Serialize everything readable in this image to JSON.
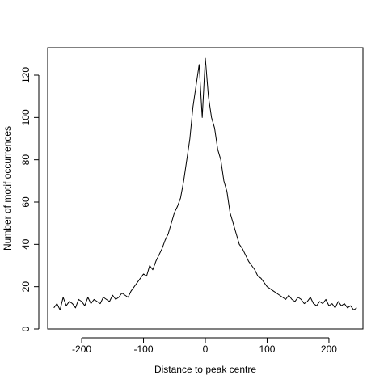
{
  "chart_data": {
    "type": "line",
    "title": "",
    "xlabel": "Distance to peak centre",
    "ylabel": "Number of motif occurrences",
    "xlim": [
      -255,
      255
    ],
    "ylim": [
      0,
      133
    ],
    "x_ticks": [
      -200,
      -100,
      0,
      100,
      200
    ],
    "x_tick_labels": [
      "-200",
      "-100",
      "0",
      "100",
      "200"
    ],
    "y_ticks": [
      0,
      20,
      40,
      60,
      80,
      100,
      120
    ],
    "y_tick_labels": [
      "0",
      "20",
      "40",
      "60",
      "80",
      "100",
      "120"
    ],
    "grid": false,
    "line_color": "#000000",
    "series": [
      {
        "x": [
          -245,
          -240,
          -235,
          -230,
          -225,
          -220,
          -215,
          -210,
          -205,
          -200,
          -195,
          -190,
          -185,
          -180,
          -175,
          -170,
          -165,
          -160,
          -155,
          -150,
          -145,
          -140,
          -135,
          -130,
          -125,
          -120,
          -115,
          -110,
          -105,
          -100,
          -95,
          -90,
          -85,
          -80,
          -75,
          -70,
          -65,
          -60,
          -55,
          -50,
          -45,
          -40,
          -35,
          -30,
          -25,
          -20,
          -15,
          -10,
          -5,
          0,
          5,
          10,
          15,
          20,
          25,
          30,
          35,
          40,
          45,
          50,
          55,
          60,
          65,
          70,
          75,
          80,
          85,
          90,
          95,
          100,
          105,
          110,
          115,
          120,
          125,
          130,
          135,
          140,
          145,
          150,
          155,
          160,
          165,
          170,
          175,
          180,
          185,
          190,
          195,
          200,
          205,
          210,
          215,
          220,
          225,
          230,
          235,
          240,
          245
        ],
        "y": [
          10,
          12,
          9,
          15,
          11,
          13,
          12,
          10,
          14,
          13,
          11,
          15,
          12,
          14,
          13,
          12,
          15,
          14,
          13,
          16,
          14,
          15,
          17,
          16,
          15,
          18,
          20,
          22,
          24,
          26,
          25,
          30,
          28,
          32,
          35,
          38,
          42,
          45,
          50,
          55,
          58,
          62,
          70,
          80,
          90,
          105,
          115,
          125,
          100,
          128,
          110,
          100,
          95,
          85,
          80,
          70,
          65,
          55,
          50,
          45,
          40,
          38,
          35,
          32,
          30,
          28,
          25,
          24,
          22,
          20,
          19,
          18,
          17,
          16,
          15,
          14,
          16,
          14,
          13,
          15,
          14,
          12,
          13,
          15,
          12,
          11,
          13,
          12,
          14,
          11,
          12,
          10,
          13,
          11,
          12,
          10,
          11,
          9,
          10
        ]
      }
    ]
  }
}
